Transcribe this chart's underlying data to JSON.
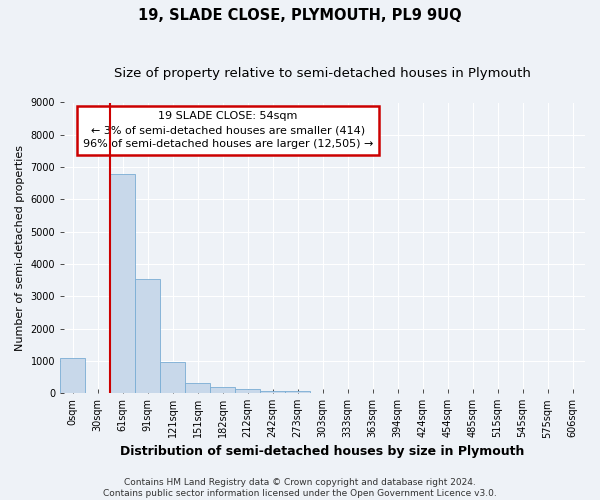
{
  "title": "19, SLADE CLOSE, PLYMOUTH, PL9 9UQ",
  "subtitle": "Size of property relative to semi-detached houses in Plymouth",
  "xlabel": "Distribution of semi-detached houses by size in Plymouth",
  "ylabel": "Number of semi-detached properties",
  "bar_labels": [
    "0sqm",
    "30sqm",
    "61sqm",
    "91sqm",
    "121sqm",
    "151sqm",
    "182sqm",
    "212sqm",
    "242sqm",
    "273sqm",
    "303sqm",
    "333sqm",
    "363sqm",
    "394sqm",
    "424sqm",
    "454sqm",
    "485sqm",
    "515sqm",
    "545sqm",
    "575sqm",
    "606sqm"
  ],
  "bar_values": [
    1100,
    0,
    6800,
    3550,
    970,
    330,
    200,
    130,
    80,
    60,
    0,
    0,
    0,
    0,
    0,
    0,
    0,
    0,
    0,
    0,
    0
  ],
  "bar_color": "#c8d8ea",
  "bar_edge_color": "#7aadd4",
  "vline_x": 2,
  "highlight_color": "#cc0000",
  "annotation_text": "19 SLADE CLOSE: 54sqm\n← 3% of semi-detached houses are smaller (414)\n96% of semi-detached houses are larger (12,505) →",
  "annotation_box_color": "#ffffff",
  "annotation_box_edge": "#cc0000",
  "ylim": [
    0,
    9000
  ],
  "yticks": [
    0,
    1000,
    2000,
    3000,
    4000,
    5000,
    6000,
    7000,
    8000,
    9000
  ],
  "footnote": "Contains HM Land Registry data © Crown copyright and database right 2024.\nContains public sector information licensed under the Open Government Licence v3.0.",
  "background_color": "#eef2f7",
  "grid_color": "#ffffff",
  "title_fontsize": 10.5,
  "subtitle_fontsize": 9.5,
  "xlabel_fontsize": 9,
  "ylabel_fontsize": 8,
  "tick_fontsize": 7,
  "annotation_fontsize": 8,
  "footnote_fontsize": 6.5
}
